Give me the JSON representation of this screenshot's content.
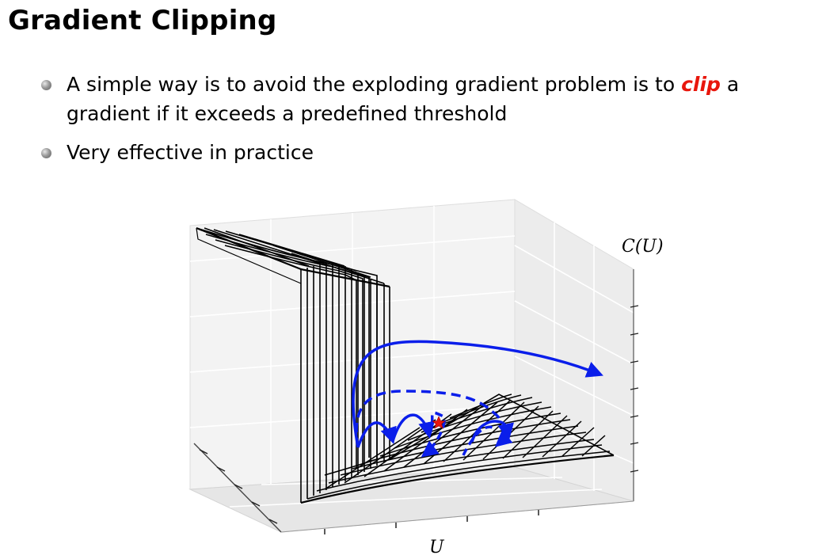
{
  "slide": {
    "title": "Gradient Clipping",
    "bullets": [
      {
        "text_before": "A simple way is to avoid the exploding gradient problem is to ",
        "emphasis": "clip",
        "text_after": " a gradient if it exceeds a predefined threshold"
      },
      {
        "text": "Very effective in practice"
      }
    ],
    "emphasis_color": "#e8160c"
  },
  "figure": {
    "z_axis_label": "C(U)",
    "x_axis_label": "U",
    "trajectory_color": "#0a1eea",
    "surface_color": "#000000",
    "minimum_marker_color": "#e8160c"
  }
}
